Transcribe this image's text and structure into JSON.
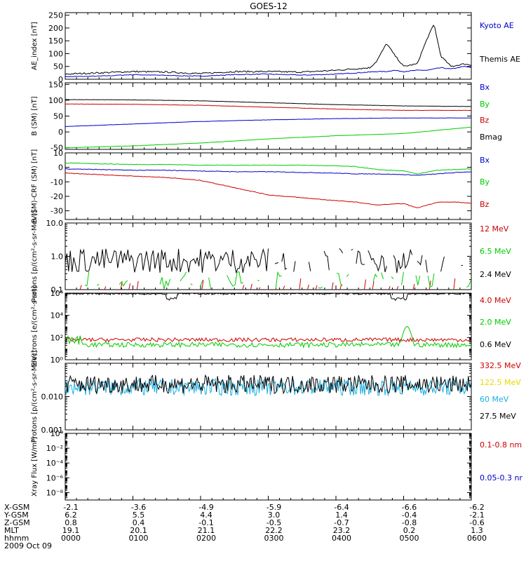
{
  "title": "GOES-12",
  "footer_date": "2009 Oct 09",
  "colors": {
    "black": "#000000",
    "blue": "#0000cc",
    "green": "#00cc00",
    "red": "#cc0000",
    "yellow": "#e8d800",
    "cyan": "#1ab0e0"
  },
  "orbit": {
    "labels": [
      "X-GSM",
      "Y-GSM",
      "Z-GSM",
      "MLT",
      "hhmm"
    ],
    "columns": [
      {
        "values": [
          "-2.1",
          "6.2",
          "0.8",
          "19.1",
          "0000"
        ]
      },
      {
        "values": [
          "-3.6",
          "5.5",
          "0.4",
          "20.1",
          "0100"
        ]
      },
      {
        "values": [
          "-4.9",
          "4.4",
          "-0.1",
          "21.1",
          "0200"
        ]
      },
      {
        "values": [
          "-5.9",
          "3.0",
          "-0.5",
          "22.2",
          "0300"
        ]
      },
      {
        "values": [
          "-6.4",
          "1.4",
          "-0.7",
          "23.2",
          "0400"
        ]
      },
      {
        "values": [
          "-6.6",
          "-0.4",
          "-0.8",
          "0.2",
          "0500"
        ]
      },
      {
        "values": [
          "-6.2",
          "-2.1",
          "-0.6",
          "1.3",
          "0600"
        ]
      }
    ]
  },
  "chart_data": [
    {
      "id": "ae",
      "type": "line",
      "ylabel": "AE_index [nT]",
      "ylim": [
        0,
        260
      ],
      "yticks": [
        0,
        50,
        100,
        150,
        200,
        250
      ],
      "ytick_labels": [
        "0",
        "50",
        "100",
        "150",
        "200",
        "250"
      ],
      "x": [
        0,
        0.5,
        1,
        1.5,
        2,
        2.5,
        3,
        3.5,
        4,
        4.5,
        4.6,
        4.75,
        4.85,
        5,
        5.2,
        5.35,
        5.45,
        5.55,
        5.7,
        5.9,
        6
      ],
      "series": [
        {
          "name": "Kyoto AE",
          "color": "blue",
          "values": [
            10,
            12,
            18,
            15,
            12,
            18,
            20,
            16,
            20,
            28,
            30,
            30,
            35,
            30,
            35,
            35,
            40,
            45,
            40,
            50,
            45
          ]
        },
        {
          "name": "Themis AE",
          "color": "black",
          "values": [
            20,
            25,
            30,
            28,
            22,
            30,
            30,
            28,
            35,
            45,
            70,
            140,
            100,
            50,
            60,
            160,
            215,
            90,
            50,
            60,
            55
          ]
        }
      ]
    },
    {
      "id": "b",
      "type": "line",
      "ylabel": "B (SM) [nT]",
      "ylim": [
        -55,
        155
      ],
      "yticks": [
        -50,
        0,
        50,
        100,
        150
      ],
      "ytick_labels": [
        "-50",
        "0",
        "50",
        "100",
        "150"
      ],
      "x": [
        0,
        1,
        2,
        3,
        4,
        5,
        6
      ],
      "series": [
        {
          "name": "Bx",
          "color": "blue",
          "values": [
            17,
            25,
            33,
            38,
            42,
            44,
            44
          ]
        },
        {
          "name": "By",
          "color": "green",
          "values": [
            -50,
            -44,
            -35,
            -22,
            -12,
            -5,
            15
          ]
        },
        {
          "name": "Bz",
          "color": "red",
          "values": [
            88,
            87,
            84,
            78,
            72,
            68,
            68
          ]
        },
        {
          "name": "Bmag",
          "color": "black",
          "values": [
            102,
            101,
            98,
            92,
            86,
            82,
            80
          ]
        }
      ]
    },
    {
      "id": "bd",
      "type": "line",
      "ylabel": "B (SM)-CRF (SM) [nT]",
      "ylim": [
        -36,
        10
      ],
      "yticks": [
        -30,
        -20,
        -10,
        0,
        10
      ],
      "ytick_labels": [
        "-30",
        "-20",
        "-10",
        "0",
        "10"
      ],
      "x": [
        0,
        0.5,
        1,
        1.5,
        2,
        2.5,
        3,
        3.5,
        4,
        4.3,
        4.6,
        5,
        5.2,
        5.5,
        5.8,
        6
      ],
      "series": [
        {
          "name": "Bx",
          "color": "blue",
          "values": [
            -1,
            -1.5,
            -2,
            -2,
            -2.5,
            -3,
            -3,
            -3.5,
            -4,
            -4.5,
            -4.5,
            -5,
            -5.5,
            -4.5,
            -3.5,
            -3
          ]
        },
        {
          "name": "By",
          "color": "green",
          "values": [
            3,
            2.5,
            2,
            2,
            1.5,
            1.5,
            1.5,
            1.5,
            1,
            0.5,
            -1.5,
            -2.5,
            -4.5,
            -2,
            -1.5,
            -1
          ]
        },
        {
          "name": "Bz",
          "color": "red",
          "values": [
            -4,
            -5,
            -6,
            -7,
            -9,
            -14,
            -19,
            -21,
            -23,
            -24,
            -26,
            -25,
            -28,
            -24,
            -24,
            -25
          ]
        }
      ]
    },
    {
      "id": "protons_low",
      "type": "line",
      "ylabel": "Protons [p/(cm²-s-sr-MeV)]",
      "yscale": "log",
      "ylim": [
        0.1,
        10
      ],
      "yticks": [
        0.1,
        1,
        10
      ],
      "ytick_labels": [
        "0.1",
        "1.0",
        "10.0"
      ],
      "series": [
        {
          "name": "12 MeV",
          "color": "red",
          "pattern": "sparse spikes near 0.1-0.2"
        },
        {
          "name": "6.5 MeV",
          "color": "green",
          "pattern": "noisy 0.1-0.5"
        },
        {
          "name": "2.4 MeV",
          "color": "black",
          "pattern": "noisy 0.3-2, gaps after 03:00"
        }
      ]
    },
    {
      "id": "electrons",
      "type": "line",
      "ylabel": "Electrons [e/(cm²-s-sr)]",
      "yscale": "log",
      "ylim": [
        1,
        1000000
      ],
      "yticks": [
        1,
        100,
        10000,
        1000000
      ],
      "ytick_labels": [
        "10⁰",
        "10²",
        "10⁴",
        "10⁶"
      ],
      "series": [
        {
          "name": "4.0 MeV",
          "color": "red",
          "pattern": "about 60, noisy"
        },
        {
          "name": "2.0 MeV",
          "color": "green",
          "pattern": "about 25, bump to 1000 near 05:10"
        },
        {
          "name": "0.6 MeV",
          "color": "black",
          "pattern": "about 800000, dips near 02:00 and 05:00"
        }
      ]
    },
    {
      "id": "protons_high",
      "type": "line",
      "ylabel": "Protons [p/(cm²-s-sr-MeV)]",
      "yscale": "log",
      "ylim": [
        0.001,
        0.1
      ],
      "yticks": [
        0.001,
        0.01,
        0.1
      ],
      "ytick_labels": [
        "0.001",
        "0.010",
        ""
      ],
      "series": [
        {
          "name": "332.5 MeV",
          "color": "red",
          "pattern": "not visible"
        },
        {
          "name": "122.5 MeV",
          "color": "yellow",
          "pattern": "not visible"
        },
        {
          "name": "60 MeV",
          "color": "cyan",
          "pattern": "noisy about 0.02"
        },
        {
          "name": "27.5 MeV",
          "color": "black",
          "pattern": "noisy about 0.025"
        }
      ]
    },
    {
      "id": "xray",
      "type": "line",
      "ylabel": "Xray Flux [W/m²]",
      "yscale": "log",
      "ylim": [
        1e-09,
        1
      ],
      "yticks": [
        1e-08,
        1e-06,
        0.0001,
        0.01,
        1
      ],
      "ytick_labels": [
        "10⁻⁸",
        "10⁻⁶",
        "10⁻⁴",
        "10⁻²",
        "10⁰"
      ],
      "series": [
        {
          "name": "0.1-0.8 nm",
          "color": "red",
          "values": []
        },
        {
          "name": "0.05-0.3 nr",
          "color": "blue",
          "values": []
        }
      ]
    }
  ]
}
